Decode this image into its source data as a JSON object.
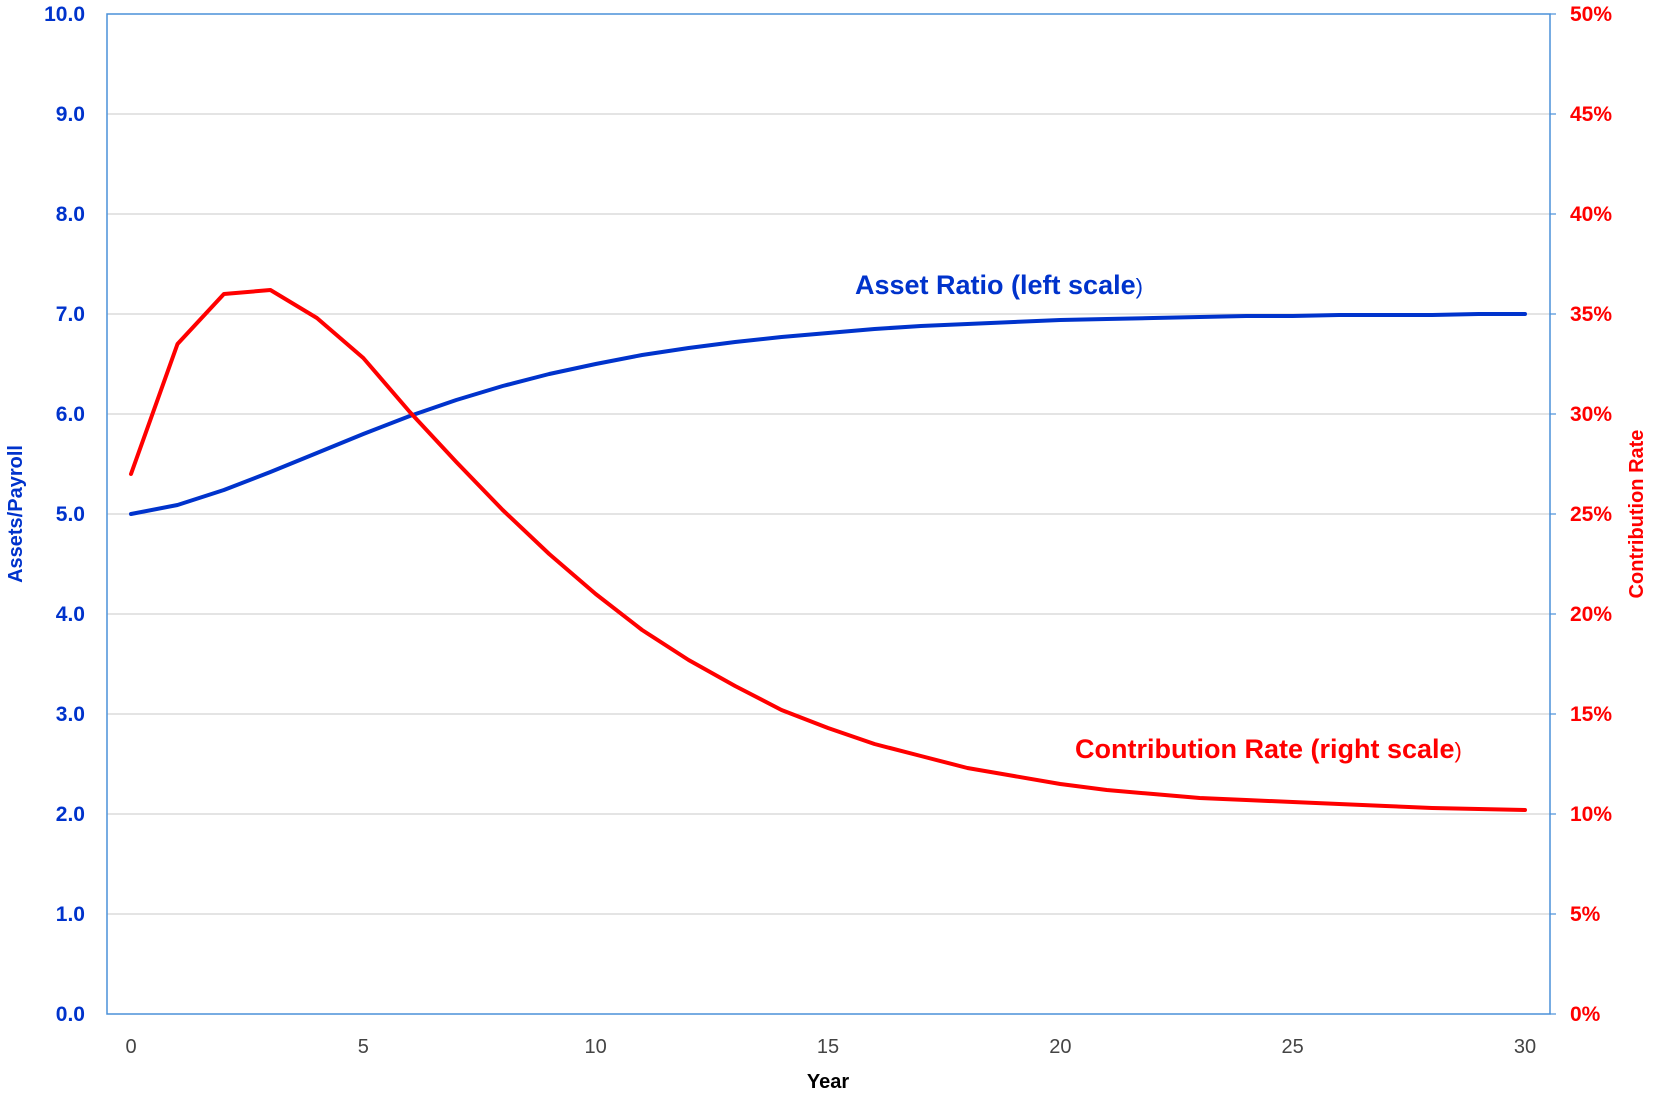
{
  "chart_data": {
    "type": "line",
    "xlabel": "Year",
    "ylabel_left": "Assets/Payroll",
    "ylabel_right": "Contribution Rate",
    "xlim": [
      0,
      30
    ],
    "ylim_left": [
      0,
      10
    ],
    "ylim_right": [
      0,
      0.5
    ],
    "x_ticks": [
      "0",
      "5",
      "10",
      "15",
      "20",
      "25",
      "30"
    ],
    "y_ticks_left": [
      "0.0",
      "1.0",
      "2.0",
      "3.0",
      "4.0",
      "5.0",
      "6.0",
      "7.0",
      "8.0",
      "9.0",
      "10.0"
    ],
    "y_ticks_right": [
      "0%",
      "5%",
      "10%",
      "15%",
      "20%",
      "25%",
      "30%",
      "35%",
      "40%",
      "45%",
      "50%"
    ],
    "grid": true,
    "series": [
      {
        "name": "Asset Ratio (left scale)",
        "axis": "left",
        "color": "#0033cc",
        "x": [
          0,
          1,
          2,
          3,
          4,
          5,
          6,
          7,
          8,
          9,
          10,
          11,
          12,
          13,
          14,
          15,
          16,
          17,
          18,
          19,
          20,
          21,
          22,
          23,
          24,
          25,
          26,
          27,
          28,
          29,
          30
        ],
        "values": [
          5.0,
          5.09,
          5.24,
          5.42,
          5.61,
          5.8,
          5.98,
          6.14,
          6.28,
          6.4,
          6.5,
          6.59,
          6.66,
          6.72,
          6.77,
          6.81,
          6.85,
          6.88,
          6.9,
          6.92,
          6.94,
          6.95,
          6.96,
          6.97,
          6.98,
          6.98,
          6.99,
          6.99,
          6.99,
          7.0,
          7.0
        ]
      },
      {
        "name": "Contribution Rate (right scale)",
        "axis": "right",
        "color": "#ff0000",
        "x": [
          0,
          1,
          2,
          3,
          4,
          5,
          6,
          7,
          8,
          9,
          10,
          11,
          12,
          13,
          14,
          15,
          16,
          17,
          18,
          19,
          20,
          21,
          22,
          23,
          24,
          25,
          26,
          27,
          28,
          29,
          30
        ],
        "values": [
          0.27,
          0.335,
          0.36,
          0.362,
          0.348,
          0.328,
          0.301,
          0.276,
          0.252,
          0.23,
          0.21,
          0.192,
          0.177,
          0.164,
          0.152,
          0.143,
          0.135,
          0.129,
          0.123,
          0.119,
          0.115,
          0.112,
          0.11,
          0.108,
          0.107,
          0.106,
          0.105,
          0.104,
          0.103,
          0.1025,
          0.102
        ]
      }
    ],
    "annotations": [
      {
        "text": "Asset Ratio (left scale",
        "suffix": ")",
        "series": "Asset Ratio (left scale)"
      },
      {
        "text": "Contribution Rate (right scale",
        "suffix": ")",
        "series": "Contribution Rate (right scale)"
      }
    ]
  }
}
